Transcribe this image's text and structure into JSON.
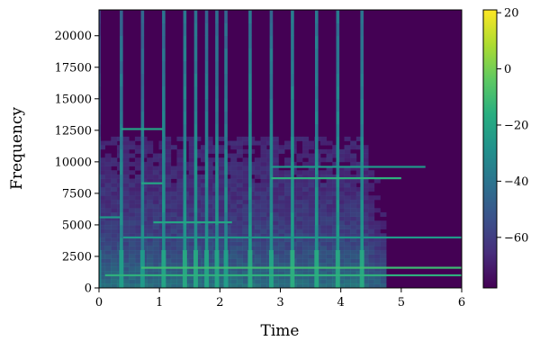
{
  "chart_data": {
    "type": "heatmap",
    "title": "",
    "xlabel": "Time",
    "ylabel": "Frequency",
    "xlim": [
      0,
      6
    ],
    "ylim": [
      0,
      22050
    ],
    "x_ticks": [
      "0",
      "1",
      "2",
      "3",
      "4",
      "5",
      "6"
    ],
    "y_ticks": [
      "0",
      "2500",
      "5000",
      "7500",
      "10000",
      "12500",
      "15000",
      "17500",
      "20000"
    ],
    "colorbar": {
      "colormap": "viridis",
      "range": [
        -78,
        21
      ],
      "ticks": [
        "20",
        "0",
        "−20",
        "−40",
        "−60"
      ]
    },
    "signal_end_time": 4.75,
    "note_onsets": [
      {
        "time": 0.0,
        "level_db": 0
      },
      {
        "time": 0.37,
        "level_db": 10
      },
      {
        "time": 0.72,
        "level_db": 8
      },
      {
        "time": 1.07,
        "level_db": 12
      },
      {
        "time": 1.42,
        "level_db": 14
      },
      {
        "time": 1.6,
        "level_db": 14
      },
      {
        "time": 1.78,
        "level_db": 12
      },
      {
        "time": 1.95,
        "level_db": 12
      },
      {
        "time": 2.1,
        "level_db": 10
      },
      {
        "time": 2.5,
        "level_db": 14
      },
      {
        "time": 2.85,
        "level_db": 12
      },
      {
        "time": 3.2,
        "level_db": 16
      },
      {
        "time": 3.6,
        "level_db": 14
      },
      {
        "time": 3.95,
        "level_db": 14
      },
      {
        "time": 4.35,
        "level_db": 14
      }
    ],
    "harmonic_bands": [
      {
        "frequency": 1000,
        "start": 0.1,
        "end": 6.0,
        "level_db": -15
      },
      {
        "frequency": 1600,
        "start": 0.7,
        "end": 6.0,
        "level_db": -10
      },
      {
        "frequency": 4000,
        "start": 0.4,
        "end": 6.0,
        "level_db": -25
      },
      {
        "frequency": 5200,
        "start": 0.9,
        "end": 2.2,
        "level_db": -20
      },
      {
        "frequency": 5600,
        "start": 0.0,
        "end": 0.35,
        "level_db": -25
      },
      {
        "frequency": 8300,
        "start": 0.7,
        "end": 1.05,
        "level_db": -20
      },
      {
        "frequency": 8700,
        "start": 2.85,
        "end": 5.0,
        "level_db": -15
      },
      {
        "frequency": 9600,
        "start": 2.85,
        "end": 5.4,
        "level_db": -25
      },
      {
        "frequency": 12600,
        "start": 0.37,
        "end": 1.05,
        "level_db": -20
      }
    ]
  }
}
